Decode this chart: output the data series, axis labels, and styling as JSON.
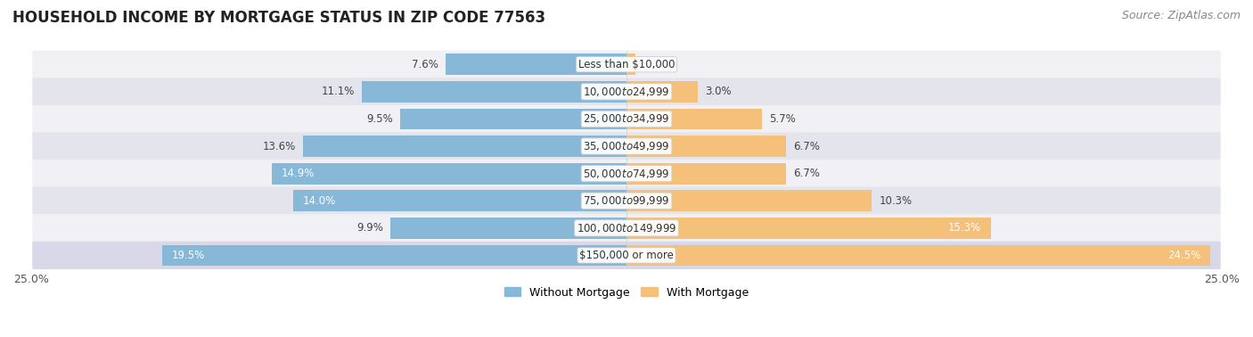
{
  "title": "HOUSEHOLD INCOME BY MORTGAGE STATUS IN ZIP CODE 77563",
  "source": "Source: ZipAtlas.com",
  "categories": [
    "Less than $10,000",
    "$10,000 to $24,999",
    "$25,000 to $34,999",
    "$35,000 to $49,999",
    "$50,000 to $74,999",
    "$75,000 to $99,999",
    "$100,000 to $149,999",
    "$150,000 or more"
  ],
  "without_mortgage": [
    7.6,
    11.1,
    9.5,
    13.6,
    14.9,
    14.0,
    9.9,
    19.5
  ],
  "with_mortgage": [
    0.38,
    3.0,
    5.7,
    6.7,
    6.7,
    10.3,
    15.3,
    24.5
  ],
  "color_without": "#88b8d8",
  "color_with": "#f5c07a",
  "row_color_light": "#f0f0f5",
  "row_color_dark": "#e4e4ec",
  "row_color_bottom": "#d8d8e8",
  "axis_limit": 25.0,
  "legend_without": "Without Mortgage",
  "legend_with": "With Mortgage",
  "title_fontsize": 12,
  "source_fontsize": 9,
  "bar_label_fontsize": 8.5,
  "category_fontsize": 8.5,
  "fig_bg": "#ffffff",
  "label_threshold": 14.0
}
